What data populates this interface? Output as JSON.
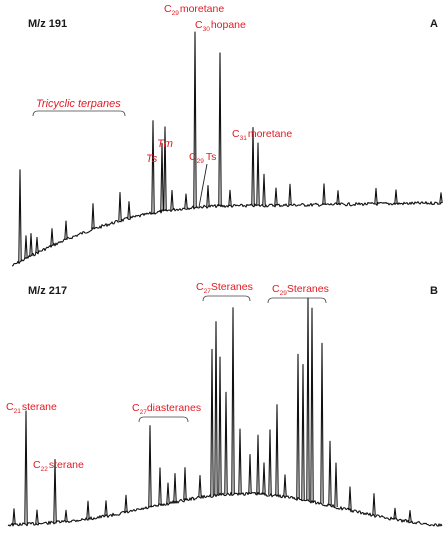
{
  "chart_data": [
    {
      "type": "line",
      "panel": "A",
      "title": "M/z 191",
      "colors": {
        "trace": "#111111",
        "annotation": "#e01b24"
      },
      "annotations": [
        {
          "label": "Tricyclic terpanes",
          "style": "italic",
          "bracket": true
        },
        {
          "label": "Ts",
          "style": "italic"
        },
        {
          "label": "Tm",
          "style": "italic"
        },
        {
          "prefix": "C",
          "sub": "29",
          "label": "moretane"
        },
        {
          "prefix": "C",
          "sub": "30",
          "label": "hopane"
        },
        {
          "prefix": "C",
          "sub": "29",
          "label": "Ts",
          "pointer": true
        },
        {
          "prefix": "C",
          "sub": "31",
          "label": "moretane"
        }
      ],
      "peaks": [
        {
          "x": 20,
          "y": 0.4
        },
        {
          "x": 26,
          "y": 0.1
        },
        {
          "x": 31,
          "y": 0.1
        },
        {
          "x": 37,
          "y": 0.07
        },
        {
          "x": 52,
          "y": 0.08
        },
        {
          "x": 66,
          "y": 0.09
        },
        {
          "x": 93,
          "y": 0.13
        },
        {
          "x": 120,
          "y": 0.15
        },
        {
          "x": 129,
          "y": 0.09
        },
        {
          "x": 153,
          "y": 0.51
        },
        {
          "x": 162,
          "y": 0.38
        },
        {
          "x": 165,
          "y": 0.47
        },
        {
          "x": 172,
          "y": 0.11
        },
        {
          "x": 186,
          "y": 0.08
        },
        {
          "x": 195,
          "y": 1.0
        },
        {
          "x": 208,
          "y": 0.12
        },
        {
          "x": 220,
          "y": 0.88
        },
        {
          "x": 230,
          "y": 0.09
        },
        {
          "x": 253,
          "y": 0.45
        },
        {
          "x": 258,
          "y": 0.36
        },
        {
          "x": 264,
          "y": 0.18
        },
        {
          "x": 276,
          "y": 0.1
        },
        {
          "x": 290,
          "y": 0.12
        },
        {
          "x": 324,
          "y": 0.12
        },
        {
          "x": 338,
          "y": 0.08
        },
        {
          "x": 376,
          "y": 0.09
        },
        {
          "x": 396,
          "y": 0.08
        },
        {
          "x": 441,
          "y": 0.06
        }
      ]
    },
    {
      "type": "line",
      "panel": "B",
      "title": "M/z 217",
      "colors": {
        "trace": "#111111",
        "annotation": "#e01b24"
      },
      "annotations": [
        {
          "prefix": "C",
          "sub": "21",
          "label": "sterane"
        },
        {
          "prefix": "C",
          "sub": "22",
          "label": "sterane"
        },
        {
          "prefix": "C",
          "sub": "27",
          "label": "diasteranes",
          "bracket": true
        },
        {
          "prefix": "C",
          "sub": "27",
          "label": "Steranes",
          "bracket": true
        },
        {
          "prefix": "C",
          "sub": "29",
          "label": "Steranes",
          "bracket": true
        }
      ],
      "peaks": [
        {
          "x": 14,
          "y": 0.07
        },
        {
          "x": 26,
          "y": 0.5
        },
        {
          "x": 37,
          "y": 0.06
        },
        {
          "x": 55,
          "y": 0.28
        },
        {
          "x": 66,
          "y": 0.05
        },
        {
          "x": 88,
          "y": 0.08
        },
        {
          "x": 106,
          "y": 0.07
        },
        {
          "x": 126,
          "y": 0.08
        },
        {
          "x": 150,
          "y": 0.39
        },
        {
          "x": 160,
          "y": 0.18
        },
        {
          "x": 168,
          "y": 0.1
        },
        {
          "x": 175,
          "y": 0.14
        },
        {
          "x": 185,
          "y": 0.16
        },
        {
          "x": 200,
          "y": 0.11
        },
        {
          "x": 212,
          "y": 0.74
        },
        {
          "x": 216,
          "y": 0.88
        },
        {
          "x": 220,
          "y": 0.7
        },
        {
          "x": 226,
          "y": 0.52
        },
        {
          "x": 233,
          "y": 0.95
        },
        {
          "x": 240,
          "y": 0.33
        },
        {
          "x": 250,
          "y": 0.2
        },
        {
          "x": 258,
          "y": 0.3
        },
        {
          "x": 264,
          "y": 0.16
        },
        {
          "x": 270,
          "y": 0.33
        },
        {
          "x": 277,
          "y": 0.46
        },
        {
          "x": 285,
          "y": 0.11
        },
        {
          "x": 298,
          "y": 0.72
        },
        {
          "x": 303,
          "y": 0.67
        },
        {
          "x": 308,
          "y": 1.0
        },
        {
          "x": 312,
          "y": 0.95
        },
        {
          "x": 322,
          "y": 0.78
        },
        {
          "x": 330,
          "y": 0.31
        },
        {
          "x": 336,
          "y": 0.21
        },
        {
          "x": 350,
          "y": 0.11
        },
        {
          "x": 374,
          "y": 0.1
        },
        {
          "x": 395,
          "y": 0.05
        },
        {
          "x": 410,
          "y": 0.05
        }
      ]
    }
  ]
}
